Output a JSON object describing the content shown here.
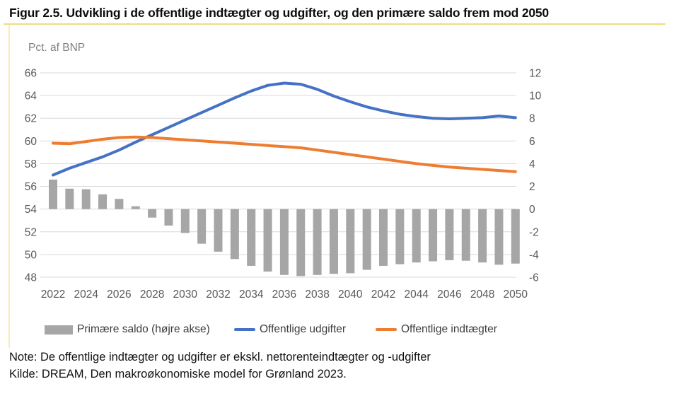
{
  "header": {
    "title": "Figur 2.5. Udvikling i de offentlige indtægter og udgifter, og den primære saldo frem mod 2050",
    "unit_label": "Pct. af BNP"
  },
  "chart_data": {
    "type": "bar+line combo",
    "title": "Figur 2.5. Udvikling i de offentlige indtægter og udgifter, og den primære saldo frem mod 2050",
    "ylabel_left": "Pct. af BNP",
    "grid": "horizontal gridlines on",
    "legend_position": "bottom",
    "x": [
      2022,
      2023,
      2024,
      2025,
      2026,
      2027,
      2028,
      2029,
      2030,
      2031,
      2032,
      2033,
      2034,
      2035,
      2036,
      2037,
      2038,
      2039,
      2040,
      2041,
      2042,
      2043,
      2044,
      2045,
      2046,
      2047,
      2048,
      2049,
      2050
    ],
    "x_tick_labels": [
      "2022",
      "2024",
      "2026",
      "2028",
      "2030",
      "2032",
      "2034",
      "2036",
      "2038",
      "2040",
      "2042",
      "2044",
      "2046",
      "2048",
      "2050"
    ],
    "left_axis": {
      "min": 48,
      "max": 66,
      "step": 2,
      "tick_labels": [
        "66",
        "64",
        "62",
        "60",
        "58",
        "56",
        "54",
        "52",
        "50",
        "48"
      ]
    },
    "right_axis": {
      "min": -6,
      "max": 12,
      "step": 2,
      "tick_labels": [
        "12",
        "10",
        "8",
        "6",
        "4",
        "2",
        "0",
        "-2",
        "-4",
        "-6"
      ],
      "note": "right axis value = left axis value - 54, bars baseline at 0"
    },
    "series": [
      {
        "name": "Primære saldo (højre akse)",
        "type": "bar",
        "axis": "right",
        "color": "#a6a6a6",
        "values": [
          2.6,
          1.8,
          1.75,
          1.3,
          0.9,
          0.25,
          -0.75,
          -1.45,
          -2.1,
          -3.05,
          -3.75,
          -4.4,
          -5.0,
          -5.5,
          -5.8,
          -5.9,
          -5.8,
          -5.7,
          -5.65,
          -5.35,
          -5.0,
          -4.85,
          -4.7,
          -4.6,
          -4.5,
          -4.55,
          -4.7,
          -4.9,
          -4.8
        ]
      },
      {
        "name": "Offentlige udgifter",
        "type": "line",
        "axis": "left",
        "color": "#4472c4",
        "values": [
          57.0,
          57.6,
          58.1,
          58.6,
          59.2,
          59.9,
          60.55,
          61.2,
          61.85,
          62.5,
          63.15,
          63.8,
          64.4,
          64.9,
          65.1,
          65.0,
          64.55,
          63.95,
          63.45,
          63.0,
          62.65,
          62.35,
          62.15,
          62.0,
          61.95,
          62.0,
          62.05,
          62.2,
          62.05
        ]
      },
      {
        "name": "Offentlige indtægter",
        "type": "line",
        "axis": "left",
        "color": "#ed7d31",
        "values": [
          59.8,
          59.75,
          59.95,
          60.15,
          60.3,
          60.35,
          60.3,
          60.2,
          60.1,
          60.0,
          59.9,
          59.8,
          59.7,
          59.6,
          59.5,
          59.4,
          59.2,
          59.0,
          58.8,
          58.6,
          58.4,
          58.2,
          58.0,
          57.85,
          57.7,
          57.6,
          57.5,
          57.4,
          57.3
        ]
      }
    ],
    "gridline_color": "#d9d9d9",
    "axis_text_color": "#595959"
  },
  "legend": {
    "items": [
      {
        "label": "Primære saldo (højre akse)",
        "swatch": "bar",
        "color": "#a6a6a6"
      },
      {
        "label": "Offentlige udgifter",
        "swatch": "line",
        "color": "#4472c4"
      },
      {
        "label": "Offentlige indtægter",
        "swatch": "line",
        "color": "#ed7d31"
      }
    ]
  },
  "footer": {
    "note": "Note: De offentlige indtægter og udgifter er ekskl. nettorenteindtægter og -udgifter",
    "source": "Kilde: DREAM, Den makroøkonomiske model for Grønland 2023."
  },
  "accents": {
    "title_underline_color": "#f0dc7d",
    "left_border_color": "#f7eeae"
  }
}
